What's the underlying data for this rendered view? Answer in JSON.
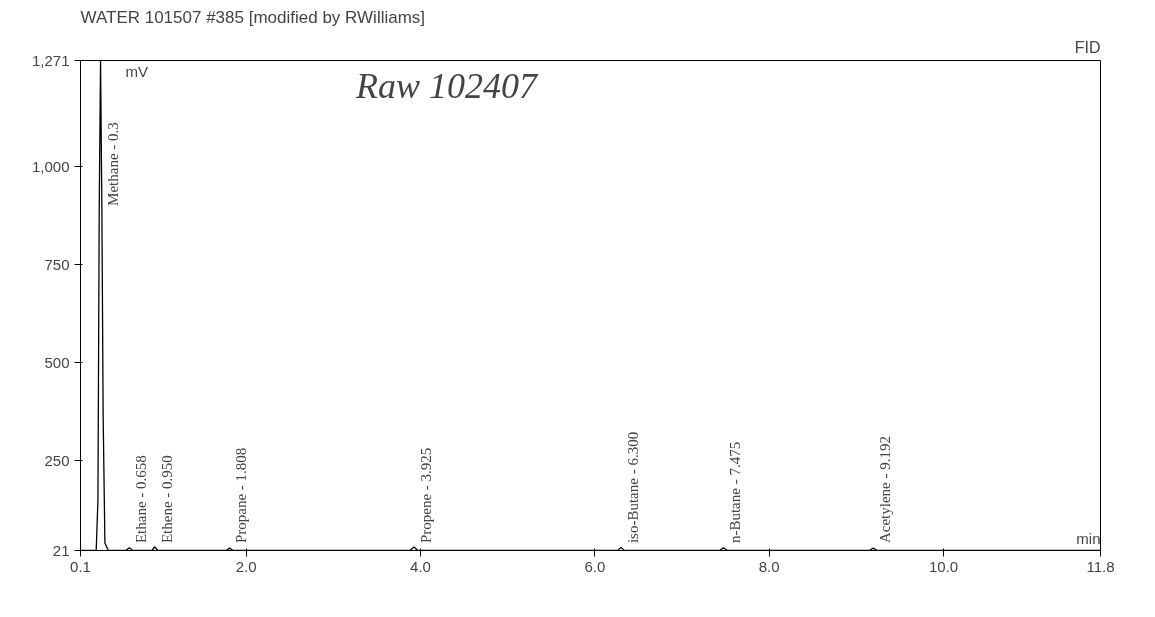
{
  "chart_data": {
    "type": "line",
    "title": "WATER 101507 #385 [modified by RWilliams]",
    "xlabel": "min",
    "ylabel": "mV",
    "x": [
      0.1,
      0.28,
      0.3,
      0.315,
      0.33,
      0.345,
      0.36,
      0.38,
      0.42,
      0.62,
      0.66,
      0.7,
      0.92,
      0.95,
      0.99,
      1.77,
      1.81,
      1.85,
      3.88,
      3.925,
      3.97,
      6.26,
      6.3,
      6.34,
      7.43,
      7.475,
      7.52,
      9.15,
      9.192,
      9.24,
      11.8
    ],
    "series": [
      {
        "color": "#000000",
        "values": [
          21,
          21,
          150,
          900,
          1271,
          900,
          360,
          40,
          21,
          21,
          28,
          21,
          21,
          30,
          21,
          21,
          27,
          21,
          21,
          30,
          21,
          21,
          29,
          21,
          21,
          28,
          21,
          21,
          27,
          21,
          21
        ]
      }
    ],
    "xlim": [
      0.1,
      11.8
    ],
    "ylim": [
      21,
      1271
    ],
    "xticks": [
      0.1,
      {
        "value": 2,
        "label": "2.0"
      },
      {
        "value": 4,
        "label": "4.0"
      },
      {
        "value": 6,
        "label": "6.0"
      },
      {
        "value": 8,
        "label": "8.0"
      },
      {
        "value": 10,
        "label": "10.0"
      },
      11.8
    ],
    "yticks": [
      21,
      250,
      500,
      750,
      {
        "value": 1000,
        "label": "1,000"
      },
      {
        "value": 1271,
        "label": "1,271"
      }
    ],
    "grid": false,
    "line_style": "solid",
    "marker": "none",
    "annotations": [
      {
        "text": "Methane - 0.3",
        "x": 0.33,
        "y": 900
      },
      {
        "text": "Ethane - 0.658",
        "x": 0.658,
        "y": 40
      },
      {
        "text": "Ethene - 0.950",
        "x": 0.95,
        "y": 40
      },
      {
        "text": "Propane - 1.808",
        "x": 1.808,
        "y": 40
      },
      {
        "text": "Propene - 3.925",
        "x": 3.925,
        "y": 40
      },
      {
        "text": "iso-Butane - 6.300",
        "x": 6.3,
        "y": 40
      },
      {
        "text": "n-Butane - 7.475",
        "x": 7.475,
        "y": 40
      },
      {
        "text": "Acetylene - 9.192",
        "x": 9.192,
        "y": 40
      },
      "FID",
      "Raw 102407"
    ]
  }
}
